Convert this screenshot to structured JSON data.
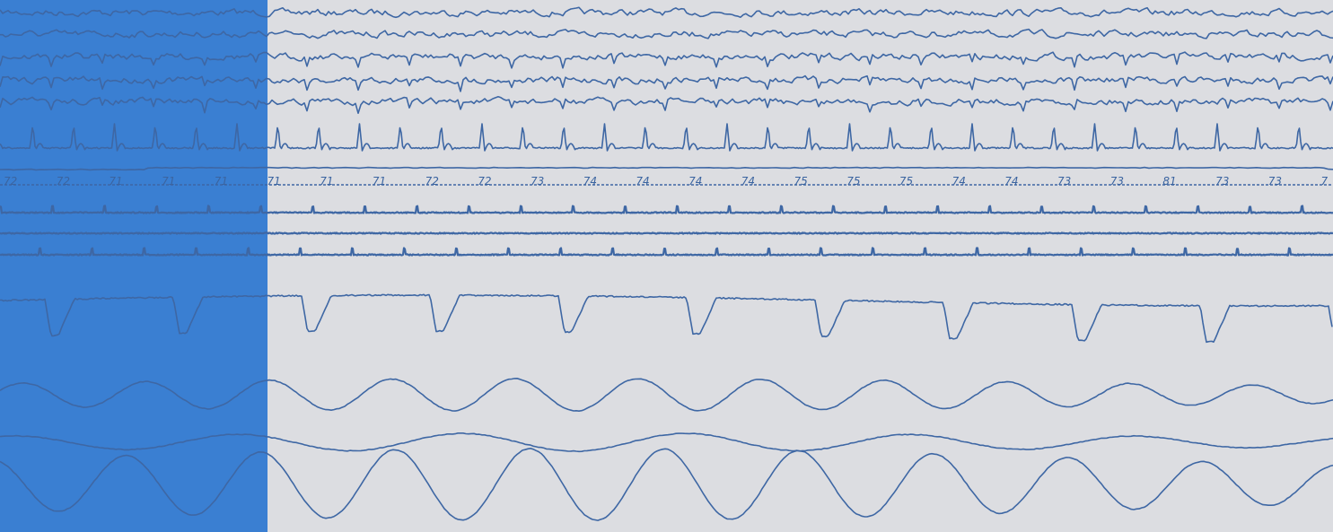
{
  "heart_rate_labels": [
    "72",
    "72",
    "71",
    "71",
    "71",
    "71",
    "71",
    "71",
    "72",
    "72",
    "73",
    "74",
    "74",
    "74",
    "74",
    "75",
    "75",
    "75",
    "74",
    "74",
    "73",
    "73",
    "81",
    "73",
    "73",
    "7"
  ]
}
